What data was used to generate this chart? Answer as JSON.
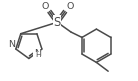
{
  "bg_color": "#ffffff",
  "line_color": "#4a4a4a",
  "line_width": 1.1,
  "font_size": 6.8,
  "figsize": [
    1.38,
    0.81
  ],
  "dpi": 100,
  "xlim": [
    0,
    138
  ],
  "ylim": [
    0,
    81
  ]
}
